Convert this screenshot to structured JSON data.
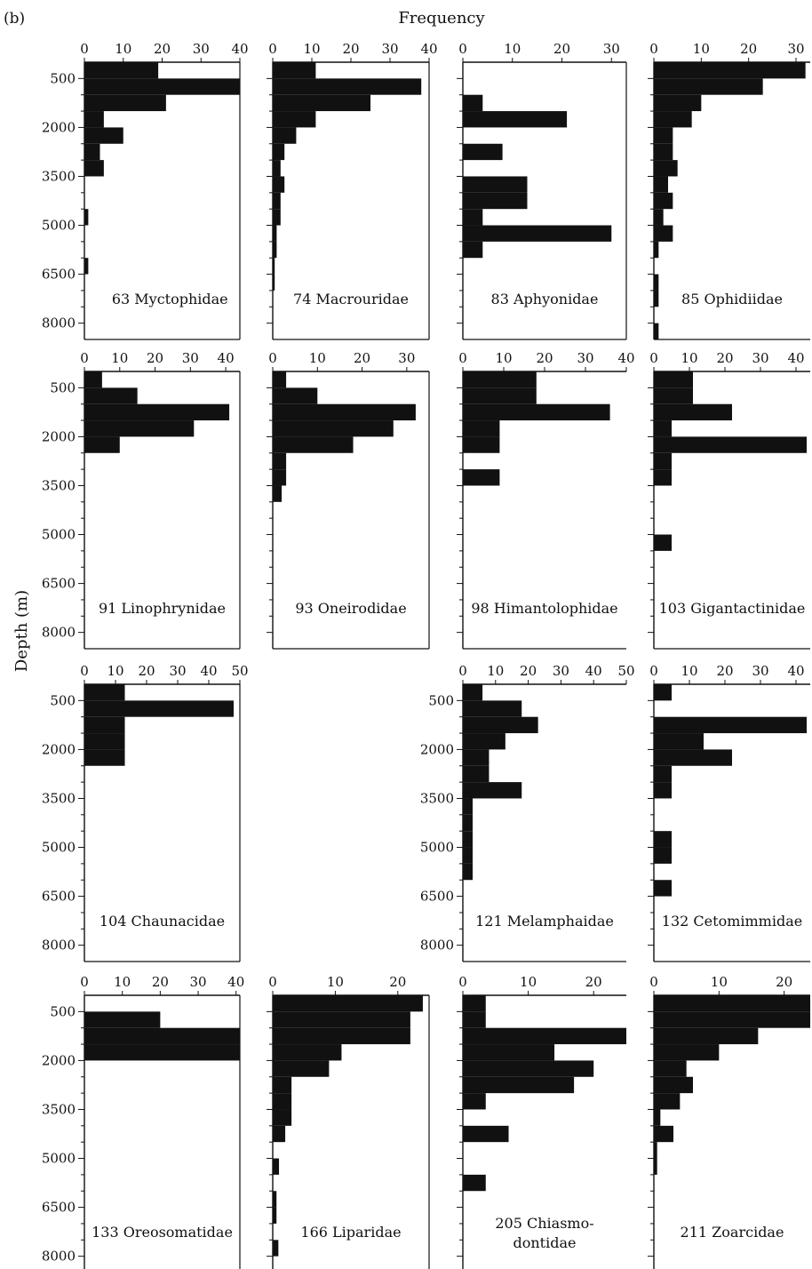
{
  "figure": {
    "label": "(b)",
    "xlabel": "Frequency",
    "ylabel": "Depth (m)",
    "depth_ticks": [
      "500",
      "2000",
      "3500",
      "5000",
      "6500",
      "8000"
    ]
  },
  "chart_data": [
    {
      "type": "bar",
      "orientation": "horizontal",
      "title": "63 Myctophidae",
      "x_ticks": [
        0,
        10,
        20,
        30,
        40
      ],
      "xlim": [
        0,
        40
      ],
      "bins": [
        [
          0,
          500,
          19
        ],
        [
          500,
          1000,
          40
        ],
        [
          1000,
          1500,
          21
        ],
        [
          1500,
          2000,
          5
        ],
        [
          2000,
          2500,
          10
        ],
        [
          2500,
          3000,
          4
        ],
        [
          3000,
          3500,
          5
        ],
        [
          4500,
          5000,
          1
        ],
        [
          6000,
          6500,
          1
        ]
      ]
    },
    {
      "type": "bar",
      "orientation": "horizontal",
      "title": "74 Macrouridae",
      "x_ticks": [
        0,
        10,
        20,
        30,
        40
      ],
      "xlim": [
        0,
        40
      ],
      "bins": [
        [
          0,
          500,
          11
        ],
        [
          500,
          1000,
          38
        ],
        [
          1000,
          1500,
          25
        ],
        [
          1500,
          2000,
          11
        ],
        [
          2000,
          2500,
          6
        ],
        [
          2500,
          3000,
          3
        ],
        [
          3000,
          3500,
          2
        ],
        [
          3500,
          4000,
          3
        ],
        [
          4000,
          4500,
          2
        ],
        [
          4500,
          5000,
          2
        ],
        [
          5000,
          5500,
          1
        ],
        [
          5500,
          6000,
          1
        ],
        [
          6000,
          6500,
          0.5
        ],
        [
          6500,
          7000,
          0.5
        ]
      ]
    },
    {
      "type": "bar",
      "orientation": "horizontal",
      "title": "83 Aphyonidae",
      "x_ticks": [
        0,
        10,
        20,
        30
      ],
      "xlim": [
        0,
        33
      ],
      "bins": [
        [
          1000,
          1500,
          4
        ],
        [
          1500,
          2000,
          21
        ],
        [
          2500,
          3000,
          8
        ],
        [
          3500,
          4000,
          13
        ],
        [
          4000,
          4500,
          13
        ],
        [
          4500,
          5000,
          4
        ],
        [
          5000,
          5500,
          30
        ],
        [
          5500,
          6000,
          4
        ]
      ]
    },
    {
      "type": "bar",
      "orientation": "horizontal",
      "title": "85 Ophidiidae",
      "x_ticks": [
        0,
        10,
        20,
        30
      ],
      "xlim": [
        0,
        33
      ],
      "bins": [
        [
          0,
          500,
          32
        ],
        [
          500,
          1000,
          23
        ],
        [
          1000,
          1500,
          10
        ],
        [
          1500,
          2000,
          8
        ],
        [
          2000,
          2500,
          4
        ],
        [
          2500,
          3000,
          4
        ],
        [
          3000,
          3500,
          5
        ],
        [
          3500,
          4000,
          3
        ],
        [
          4000,
          4500,
          4
        ],
        [
          4500,
          5000,
          2
        ],
        [
          5000,
          5500,
          4
        ],
        [
          5500,
          6000,
          1
        ],
        [
          6500,
          7000,
          1
        ],
        [
          7000,
          7500,
          1
        ],
        [
          8000,
          8500,
          1
        ]
      ]
    },
    {
      "type": "bar",
      "orientation": "horizontal",
      "title": "91 Linophrynidae",
      "x_ticks": [
        0,
        10,
        20,
        30,
        40
      ],
      "xlim": [
        0,
        44
      ],
      "bins": [
        [
          0,
          500,
          5
        ],
        [
          500,
          1000,
          15
        ],
        [
          1000,
          1500,
          41
        ],
        [
          1500,
          2000,
          31
        ],
        [
          2000,
          2500,
          10
        ]
      ]
    },
    {
      "type": "bar",
      "orientation": "horizontal",
      "title": "93 Oneirodidae",
      "x_ticks": [
        0,
        10,
        20,
        30
      ],
      "xlim": [
        0,
        35
      ],
      "bins": [
        [
          0,
          500,
          3
        ],
        [
          500,
          1000,
          10
        ],
        [
          1000,
          1500,
          32
        ],
        [
          1500,
          2000,
          27
        ],
        [
          2000,
          2500,
          18
        ],
        [
          2500,
          3000,
          3
        ],
        [
          3000,
          3500,
          3
        ],
        [
          3500,
          4000,
          2
        ]
      ]
    },
    {
      "type": "bar",
      "orientation": "horizontal",
      "title": "98 Himantolophidae",
      "x_ticks": [
        0,
        10,
        20,
        30,
        40
      ],
      "xlim": [
        0,
        40
      ],
      "bins": [
        [
          0,
          500,
          18
        ],
        [
          500,
          1000,
          18
        ],
        [
          1000,
          1500,
          36
        ],
        [
          1500,
          2000,
          9
        ],
        [
          2000,
          2500,
          9
        ],
        [
          3000,
          3500,
          9
        ]
      ]
    },
    {
      "type": "bar",
      "orientation": "horizontal",
      "title": "103 Gigantactinidae",
      "x_ticks": [
        0,
        10,
        20,
        30,
        40
      ],
      "xlim": [
        0,
        44
      ],
      "bins": [
        [
          0,
          500,
          11
        ],
        [
          500,
          1000,
          11
        ],
        [
          1000,
          1500,
          22
        ],
        [
          1500,
          2000,
          5
        ],
        [
          2000,
          2500,
          43
        ],
        [
          2500,
          3000,
          5
        ],
        [
          3000,
          3500,
          5
        ],
        [
          5000,
          5500,
          5
        ]
      ]
    },
    {
      "type": "bar",
      "orientation": "horizontal",
      "title": "104 Chaunacidae",
      "x_ticks": [
        0,
        10,
        20,
        30,
        40,
        50
      ],
      "xlim": [
        0,
        50
      ],
      "bins": [
        [
          0,
          500,
          13
        ],
        [
          500,
          1000,
          48
        ],
        [
          1000,
          1500,
          13
        ],
        [
          1500,
          2000,
          13
        ],
        [
          2000,
          2500,
          13
        ]
      ]
    },
    {
      "type": "bar",
      "orientation": "horizontal",
      "title": "121 Melamphaidae",
      "x_ticks": [
        0,
        10,
        20,
        30,
        40,
        50
      ],
      "xlim": [
        0,
        50
      ],
      "bins": [
        [
          0,
          500,
          6
        ],
        [
          500,
          1000,
          18
        ],
        [
          1000,
          1500,
          23
        ],
        [
          1500,
          2000,
          13
        ],
        [
          2000,
          2500,
          8
        ],
        [
          2500,
          3000,
          8
        ],
        [
          3000,
          3500,
          18
        ],
        [
          3500,
          4000,
          3
        ],
        [
          4000,
          4500,
          3
        ],
        [
          4500,
          5000,
          3
        ],
        [
          5000,
          5500,
          3
        ],
        [
          5500,
          6000,
          3
        ]
      ]
    },
    {
      "type": "bar",
      "orientation": "horizontal",
      "title": "132 Cetomimmidae",
      "x_ticks": [
        0,
        10,
        20,
        30,
        40
      ],
      "xlim": [
        0,
        44
      ],
      "bins": [
        [
          0,
          500,
          5
        ],
        [
          1000,
          1500,
          43
        ],
        [
          1500,
          2000,
          14
        ],
        [
          2000,
          2500,
          22
        ],
        [
          2500,
          3000,
          5
        ],
        [
          3000,
          3500,
          5
        ],
        [
          4500,
          5000,
          5
        ],
        [
          5000,
          5500,
          5
        ],
        [
          6000,
          6500,
          5
        ]
      ]
    },
    {
      "type": "bar",
      "orientation": "horizontal",
      "title": "133 Oreosomatidae",
      "x_ticks": [
        0,
        10,
        20,
        30,
        40
      ],
      "xlim": [
        0,
        41
      ],
      "bins": [
        [
          500,
          1000,
          20
        ],
        [
          1000,
          1500,
          41
        ],
        [
          1500,
          2000,
          41
        ]
      ]
    },
    {
      "type": "bar",
      "orientation": "horizontal",
      "title": "166 Liparidae",
      "x_ticks": [
        0,
        10,
        20
      ],
      "xlim": [
        0,
        25
      ],
      "bins": [
        [
          0,
          500,
          24
        ],
        [
          500,
          1000,
          22
        ],
        [
          1000,
          1500,
          22
        ],
        [
          1500,
          2000,
          11
        ],
        [
          2000,
          2500,
          9
        ],
        [
          2500,
          3000,
          3
        ],
        [
          3000,
          3500,
          3
        ],
        [
          3500,
          4000,
          3
        ],
        [
          4000,
          4500,
          2
        ],
        [
          5000,
          5500,
          1
        ],
        [
          6000,
          6500,
          0.6
        ],
        [
          6500,
          7000,
          0.6
        ],
        [
          7500,
          8000,
          0.9
        ]
      ]
    },
    {
      "type": "bar",
      "orientation": "horizontal",
      "title": "205 Chiasmo-\ndontidae",
      "x_ticks": [
        0,
        10,
        20
      ],
      "xlim": [
        0,
        25
      ],
      "bins": [
        [
          0,
          500,
          3.5
        ],
        [
          500,
          1000,
          3.5
        ],
        [
          1000,
          1500,
          25
        ],
        [
          1500,
          2000,
          14
        ],
        [
          2000,
          2500,
          20
        ],
        [
          2500,
          3000,
          17
        ],
        [
          3000,
          3500,
          3.5
        ],
        [
          4000,
          4500,
          7
        ],
        [
          5500,
          6000,
          3.5
        ]
      ]
    },
    {
      "type": "bar",
      "orientation": "horizontal",
      "title": "211 Zoarcidae",
      "x_ticks": [
        0,
        10,
        20
      ],
      "xlim": [
        0,
        24
      ],
      "bins": [
        [
          0,
          500,
          24
        ],
        [
          500,
          1000,
          24
        ],
        [
          1000,
          1500,
          16
        ],
        [
          1500,
          2000,
          10
        ],
        [
          2000,
          2500,
          5
        ],
        [
          2500,
          3000,
          6
        ],
        [
          3000,
          3500,
          4
        ],
        [
          3500,
          4000,
          1
        ],
        [
          4000,
          4500,
          3
        ],
        [
          4500,
          5000,
          0.5
        ],
        [
          5000,
          5500,
          0.5
        ]
      ]
    }
  ]
}
